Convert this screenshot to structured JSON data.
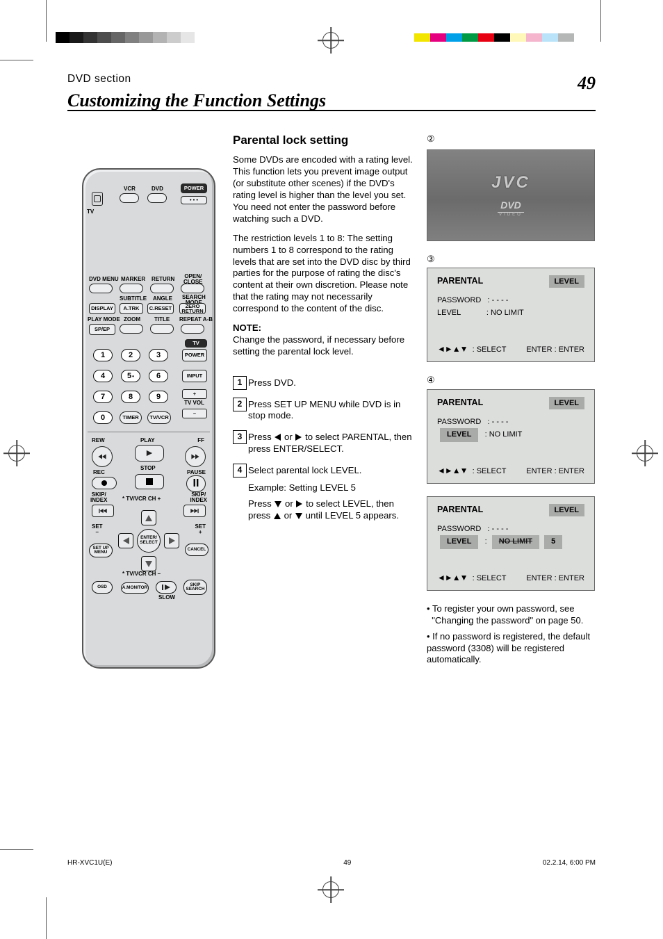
{
  "print": {
    "bw_steps": [
      "#000000",
      "#191919",
      "#333333",
      "#4d4d4d",
      "#666666",
      "#808080",
      "#999999",
      "#b3b3b3",
      "#cccccc",
      "#e6e6e6"
    ],
    "color_steps": [
      "#f2e500",
      "#e4007f",
      "#00a0e9",
      "#009944",
      "#e60012",
      "#000000",
      "#fff8b8",
      "#f4b5cd",
      "#bae3f9",
      "#b5b6b6"
    ]
  },
  "header": {
    "section": "DVD section",
    "title": "Customizing the Function Settings",
    "page": "49"
  },
  "lead": {
    "h2": "Parental lock setting",
    "p1": "Some DVDs are encoded with a rating level. This function lets you prevent image output (or substitute other scenes) if the DVD's rating level is higher than the level you set. You need not enter the password before watching such a DVD.",
    "p2": "The restriction levels 1 to 8: The setting numbers 1 to 8 correspond to the rating levels that are set into the DVD disc by third parties for the purpose of rating the disc's content at their own discretion. Please note that the rating may not necessarily correspond to the content of the disc.",
    "note_label": "NOTE:",
    "note_body": "Change the password, if necessary before setting the parental lock level."
  },
  "steps": {
    "s1": "Press DVD.",
    "s2": "Press SET UP MENU while DVD is in stop mode.",
    "s3_a": "Press ",
    "s3_b": " or ",
    "s3_c": " to select PARENTAL, then press ENTER/SELECT.",
    "s4": "Select parental lock LEVEL.",
    "examp": "Example: Setting LEVEL 5",
    "s4_a": "Press ",
    "s4_b": " or ",
    "s4_c": " to select LEVEL, then press ",
    "s4_d": " or ",
    "s4_e": " until LEVEL 5 appears."
  },
  "tv": {
    "logo": "JVC",
    "sub": "DVD",
    "sub2": "VIDEO"
  },
  "osd_titles": {
    "title": "PARENTAL",
    "tag": "LEVEL",
    "nav": "SELECT",
    "hint": "ENTER : ENTER"
  },
  "osd1": {
    "line1": "PASSWORD",
    "line1v": "- - - -",
    "line2": "LEVEL",
    "line2v": "NO LIMIT"
  },
  "osd2": {
    "line1": "PASSWORD",
    "line1v": "- - - -",
    "line2_pre": "LEVEL",
    "line2_val": "NO LIMIT"
  },
  "osd3": {
    "line1": "PASSWORD",
    "line1v": "- - - -",
    "line2_pre": "LEVEL",
    "line2_val1": "NO LIMIT",
    "line2_val2": "5"
  },
  "tail": {
    "note1a": "To register your own password, see",
    "note1b": "\"Changing the password\" on page 50.",
    "note2": "If no password is registered, the default password (3308) will be registered automatically."
  },
  "remote": {
    "top": {
      "vcr": "VCR",
      "dvd": "DVD",
      "power": "POWER",
      "tv": "TV"
    },
    "grid_labels": {
      "dvdmenu": "DVD MENU",
      "marker": "MARKER",
      "return": "RETURN",
      "openclose": "OPEN/\nCLOSE",
      "subtitle": "SUBTITLE",
      "angle": "ANGLE",
      "searchmode": "SEARCH\nMODE",
      "display": "DISPLAY",
      "atrk": "A.TRK",
      "creset": "C.RESET",
      "zeroreturn": "ZERO\nRETURN",
      "playmode": "PLAY MODE",
      "zoom": "ZOOM",
      "title": "TITLE",
      "repeatab": "REPEAT A-B",
      "spep": "SP/EP"
    },
    "nums": [
      "1",
      "2",
      "3",
      "4",
      "5",
      "6",
      "7",
      "8",
      "9",
      "0"
    ],
    "five_dot": "•",
    "right_col": {
      "tv": "TV",
      "power": "POWER",
      "input": "INPUT",
      "plus": "+",
      "tvvol": "TV VOL",
      "minus": "–",
      "timer": "TIMER",
      "tvvcr": "TV/VCR"
    },
    "transport": {
      "rew": "REW",
      "play": "PLAY",
      "ff": "FF",
      "rec": "REC",
      "stop": "STOP",
      "pause": "PAUSE",
      "skipindex": "SKIP/\nINDEX",
      "chplus": "* TV/VCR CH +",
      "chminus": "* TV/VCR CH –",
      "setminus": "SET\n–",
      "setplus": "SET\n+",
      "setup": "SET UP\nMENU",
      "cancel": "CANCEL",
      "enter": "ENTER/\nSELECT",
      "osd": "OSD",
      "amonitor": "A.MONITOR",
      "slow": "SLOW",
      "skipsearch": "SKIP\nSEARCH"
    }
  },
  "footer": {
    "file": "HR-XVC1U(E)",
    "page": "49",
    "ts": "02.2.14, 6:00 PM"
  }
}
